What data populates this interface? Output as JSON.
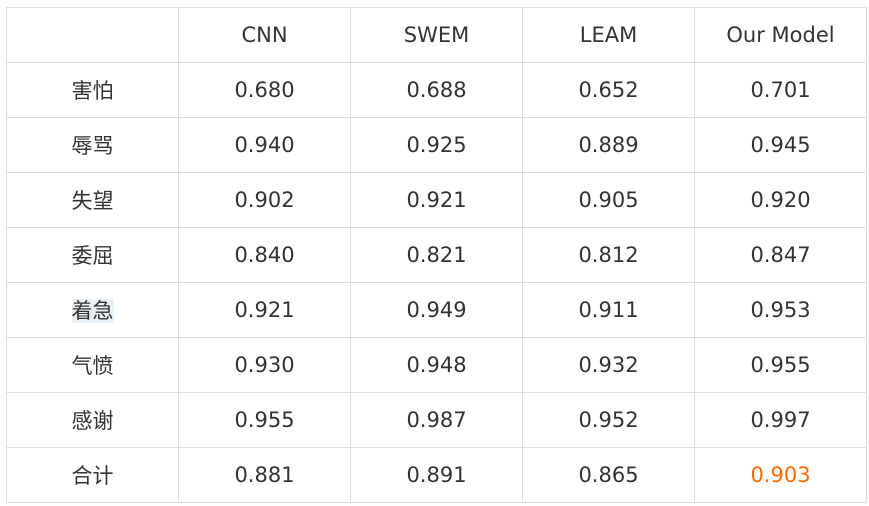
{
  "table": {
    "header": [
      "CNN",
      "SWEM",
      "LEAM",
      "Our Model"
    ],
    "rows": [
      [
        "害怕",
        "0.680",
        "0.688",
        "0.652",
        "0.701"
      ],
      [
        "辱骂",
        "0.940",
        "0.925",
        "0.889",
        "0.945"
      ],
      [
        "失望",
        "0.902",
        "0.921",
        "0.905",
        "0.920"
      ],
      [
        "委屈",
        "0.840",
        "0.821",
        "0.812",
        "0.847"
      ],
      [
        "着急",
        "0.921",
        "0.949",
        "0.911",
        "0.953"
      ],
      [
        "气愤",
        "0.930",
        "0.948",
        "0.932",
        "0.955"
      ],
      [
        "感谢",
        "0.955",
        "0.987",
        "0.952",
        "0.997"
      ],
      [
        "合计",
        "0.881",
        "0.891",
        "0.865",
        "0.903"
      ]
    ]
  }
}
